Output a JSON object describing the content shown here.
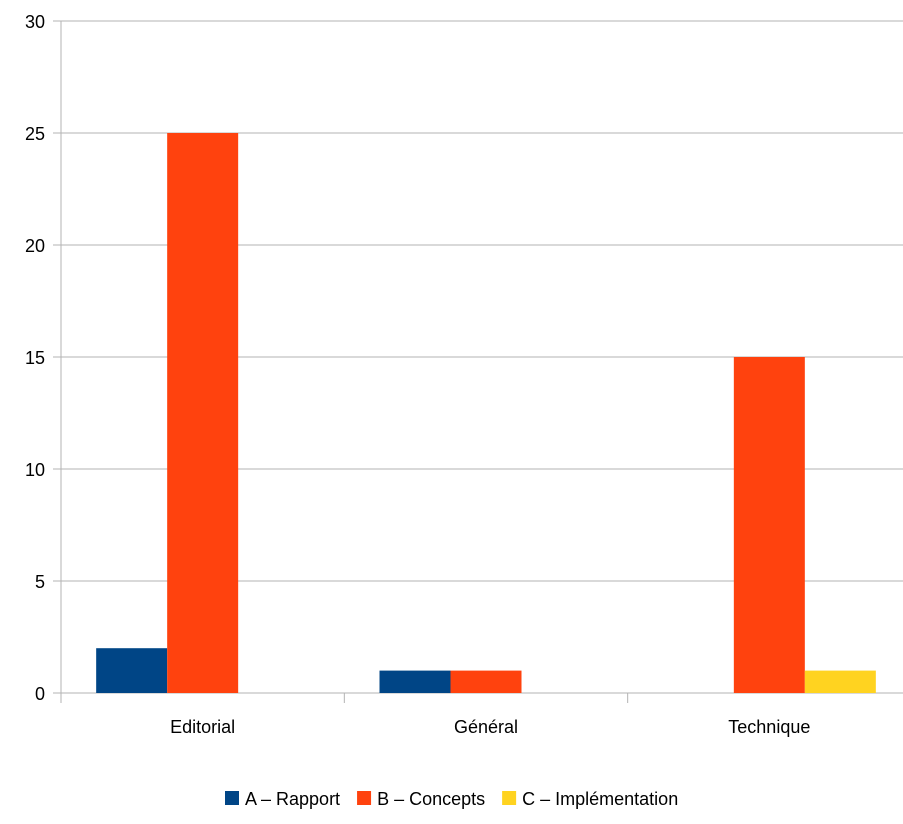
{
  "chart_data": {
    "type": "bar",
    "categories": [
      "Editorial",
      "Général",
      "Technique"
    ],
    "series": [
      {
        "name": "A – Rapport",
        "color": "#004586",
        "values": [
          2,
          1,
          0
        ]
      },
      {
        "name": "B – Concepts",
        "color": "#ff420e",
        "values": [
          25,
          1,
          15
        ]
      },
      {
        "name": "C – Implémentation",
        "color": "#ffd320",
        "values": [
          0,
          0,
          1
        ]
      }
    ],
    "ylim": [
      0,
      30
    ],
    "yticks": [
      "0",
      "5",
      "10",
      "15",
      "20",
      "25",
      "30"
    ],
    "grid": true,
    "legend_position": "bottom"
  }
}
